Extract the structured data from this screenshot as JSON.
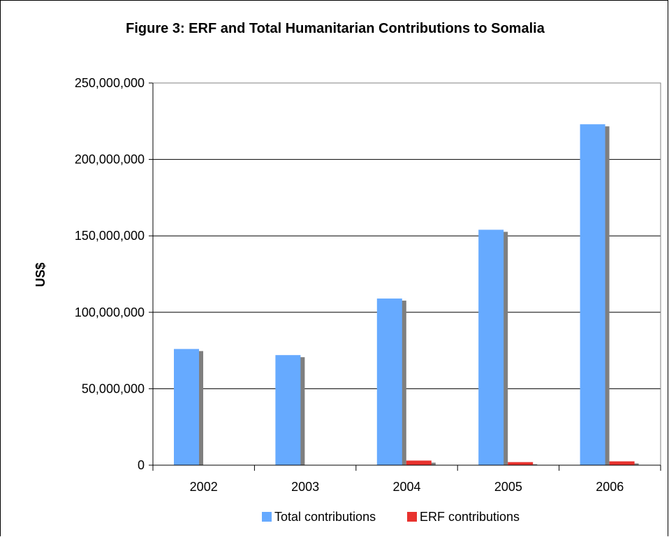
{
  "chart_data": {
    "type": "bar",
    "title": "Figure 3: ERF and Total Humanitarian Contributions to Somalia",
    "xlabel": "",
    "ylabel": "US$",
    "categories": [
      "2002",
      "2003",
      "2004",
      "2005",
      "2006"
    ],
    "series": [
      {
        "name": "Total contributions",
        "values": [
          76000000,
          72000000,
          109000000,
          154000000,
          223000000
        ],
        "color": "#66aaff"
      },
      {
        "name": "ERF contributions",
        "values": [
          0,
          0,
          3000000,
          2000000,
          2500000
        ],
        "color": "#e8322e"
      }
    ],
    "ylim": [
      0,
      250000000
    ],
    "yticks": [
      0,
      50000000,
      100000000,
      150000000,
      200000000,
      250000000
    ],
    "ytick_labels": [
      "0",
      "50,000,000",
      "100,000,000",
      "150,000,000",
      "200,000,000",
      "250,000,000"
    ],
    "grid": true,
    "legend_position": "bottom",
    "colors": {
      "shadow": "#7f7f7f",
      "gridline": "#000000"
    }
  }
}
